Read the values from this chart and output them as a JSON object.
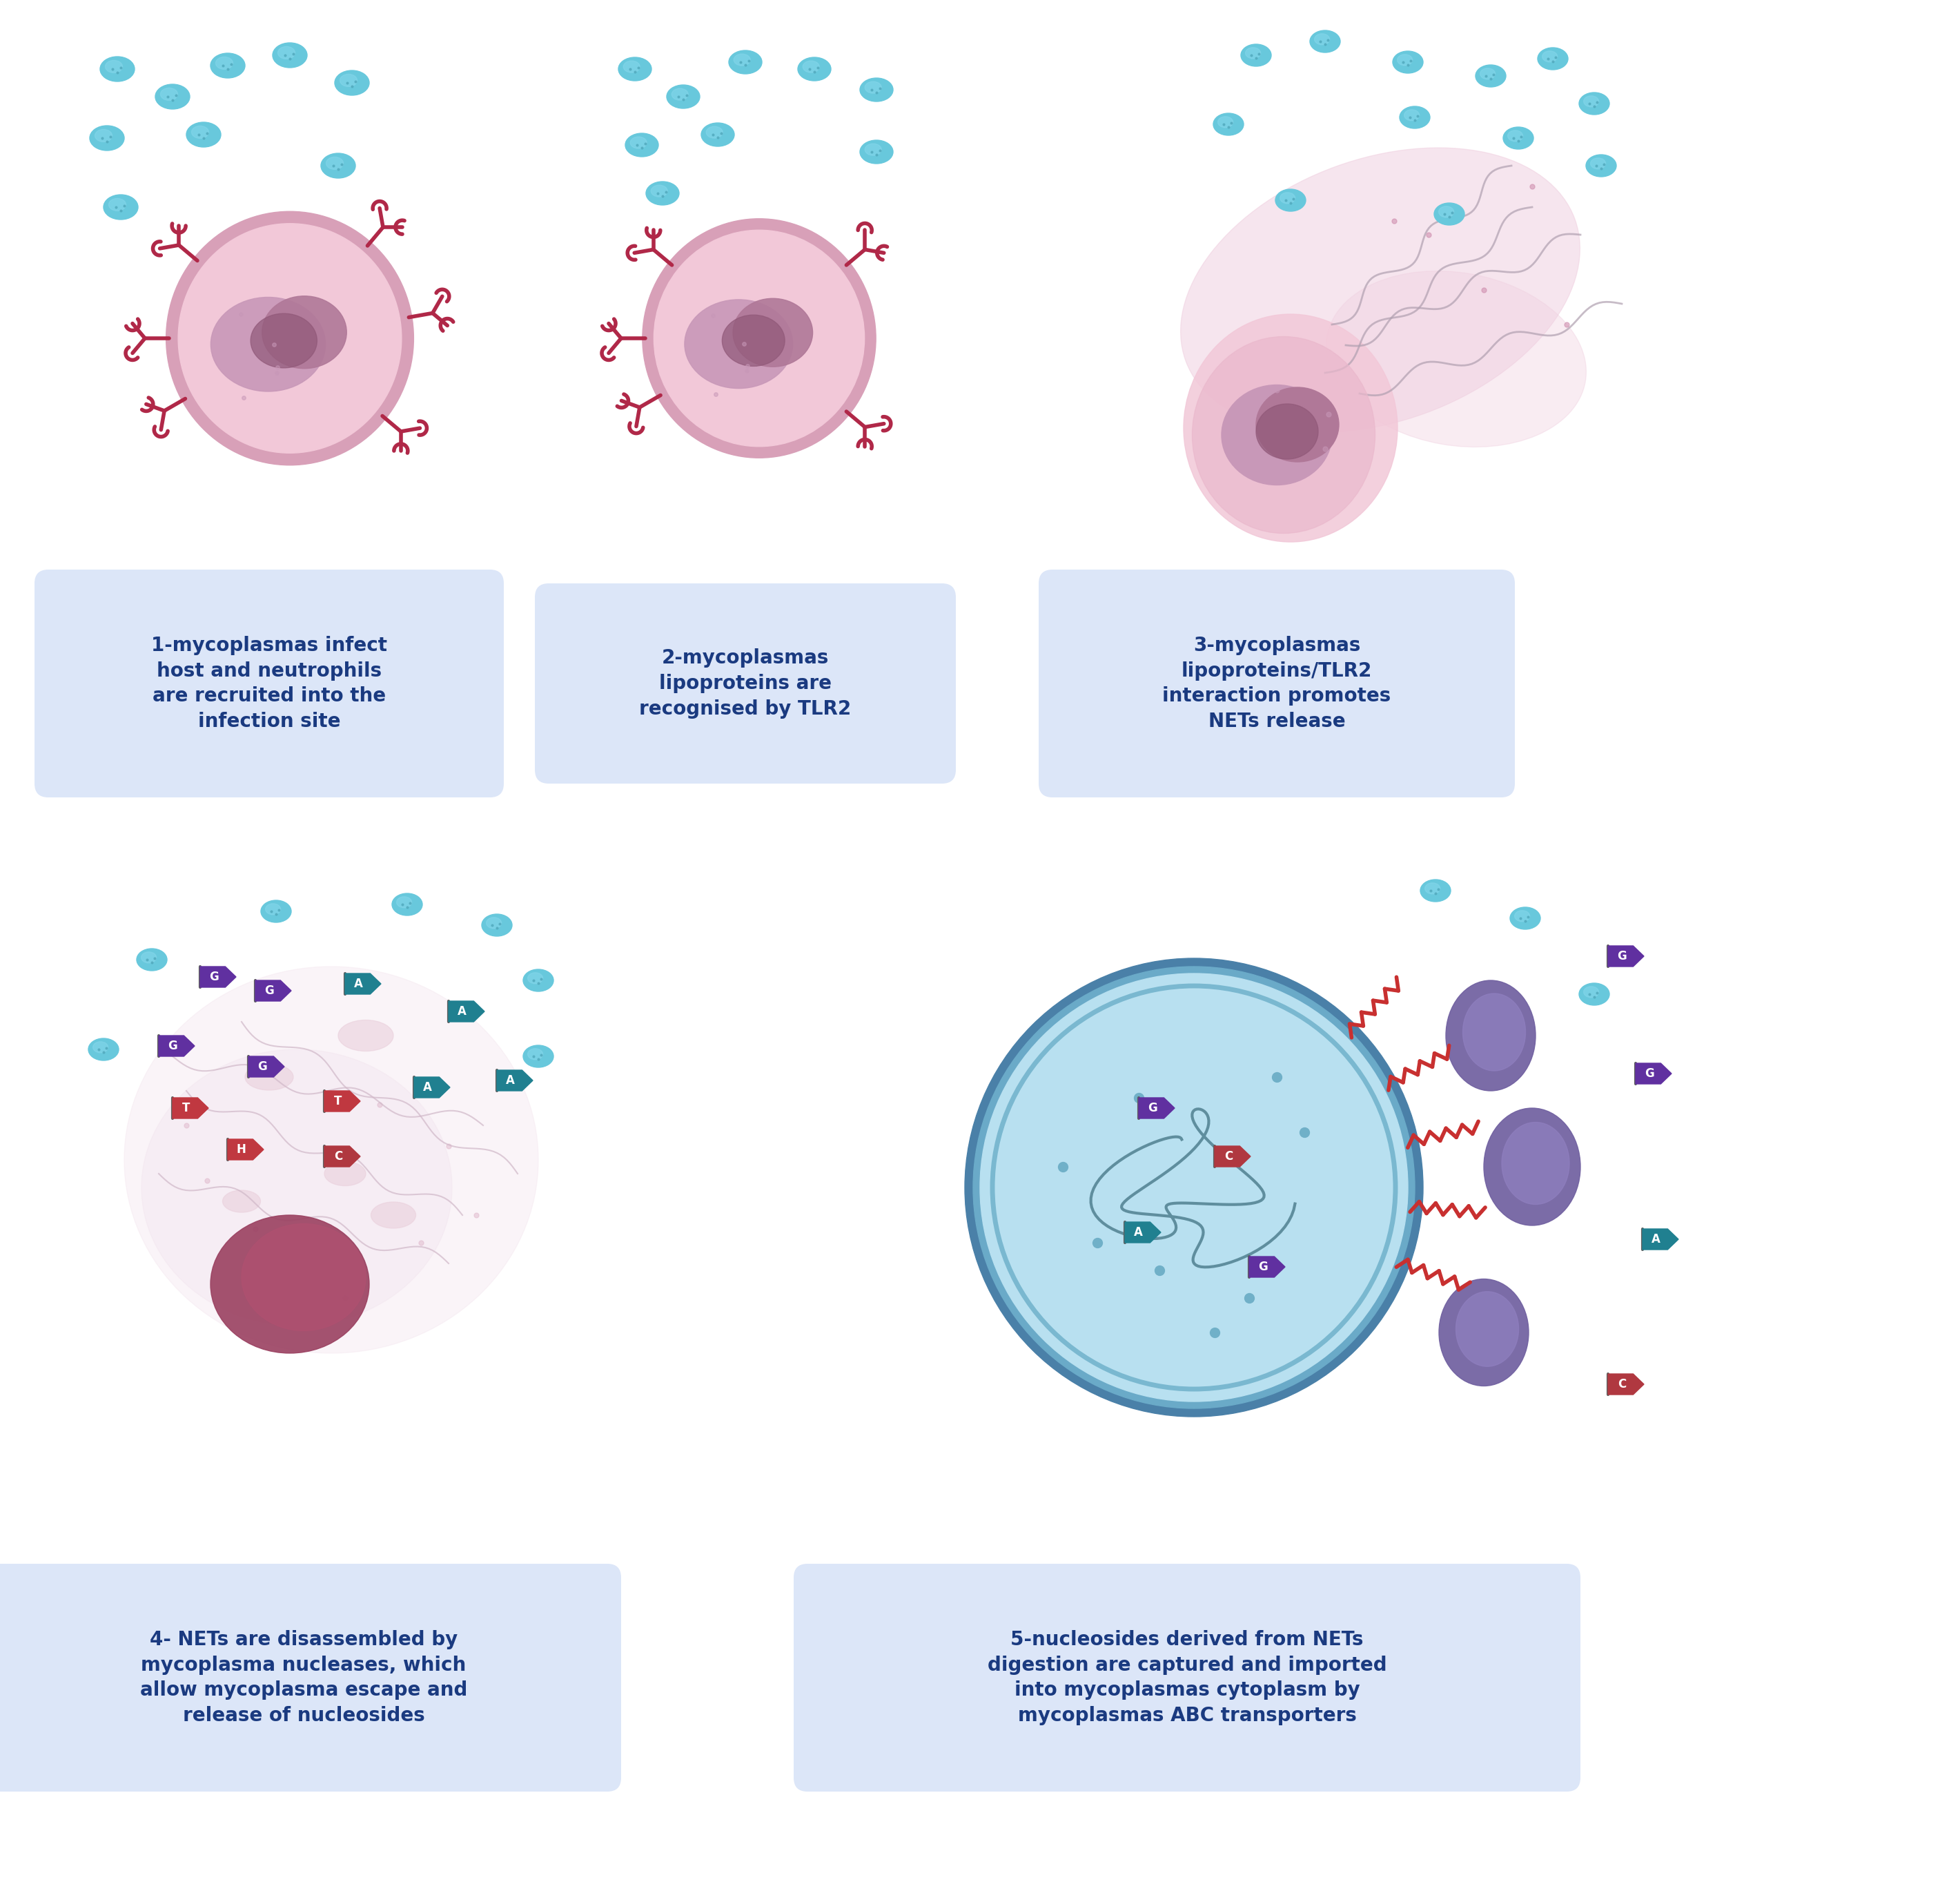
{
  "background_color": "#ffffff",
  "cell_pink_light": "#f2c8d8",
  "cell_pink_mid": "#eab8cc",
  "cell_pink_border": "#d8a0b8",
  "nucleus_outer": "#c898b8",
  "nucleus_inner": "#b07898",
  "nucleus_dark": "#905878",
  "receptor_color": "#b02848",
  "mycoplasma_color": "#68c8dc",
  "mycoplasma_dark": "#50a8bc",
  "mycoplasma_inner": "#88d8ec",
  "label_bg": "#dce6f8",
  "label_text": "#1a3a80",
  "label_fontsize": 20,
  "net_color": "#f0d0e0",
  "net_border": "#e0b8cc",
  "dna_color": "#c0a0b0",
  "nucleotide_G": "#6030a0",
  "nucleotide_A": "#208090",
  "nucleotide_T": "#c03840",
  "nucleotide_C": "#b03840",
  "nucleotide_pole": "#606060",
  "abc_purple": "#7060a0",
  "abc_purple_light": "#9080c0",
  "cell_blue_bg": "#b8e0f0",
  "cell_blue_ring1": "#6090b8",
  "cell_blue_ring2": "#90c0d8",
  "cell_blue_dna": "#508090",
  "cell_blue_dot": "#70b0c8",
  "helix_red": "#c83030",
  "panel_labels": [
    "1-mycoplasmas infect\nhost and neutrophils\nare recruited into the\ninfection site",
    "2-mycoplasmas\nlipoproteins are\nrecognised by TLR2",
    "3-mycoplasmas\nlipoproteins/TLR2\ninteraction promotes\nNETs release",
    "4- NETs are disassembled by\nmycoplasma nucleases, which\nallow mycoplasma escape and\nrelease of nucleosides",
    "5-nucleosides derived from NETs\ndigestion are captured and imported\ninto mycoplasmas cytoplasm by\nmycoplasmas ABC transporters"
  ]
}
